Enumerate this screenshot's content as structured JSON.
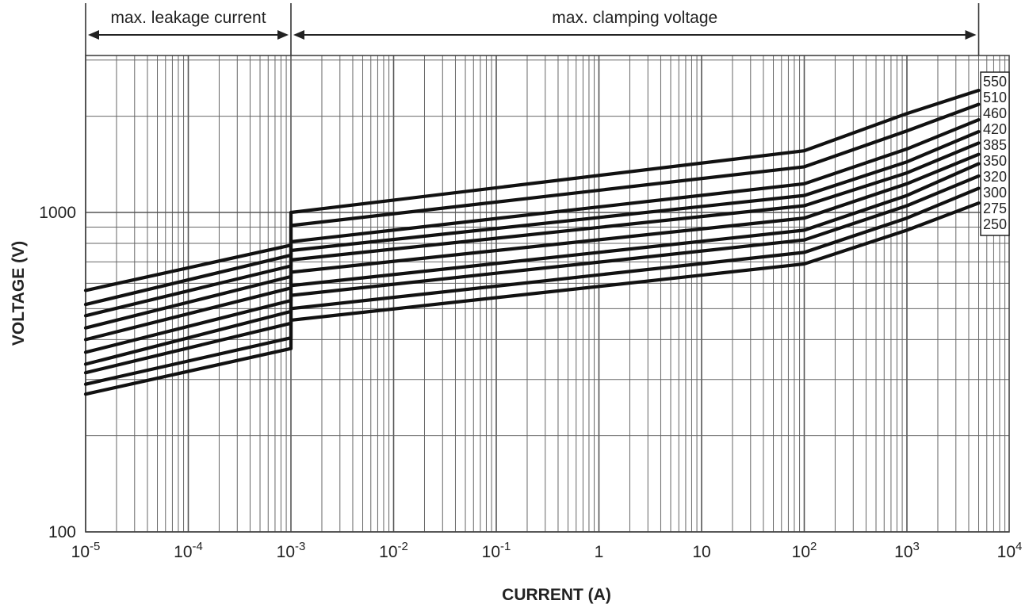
{
  "chart_data": {
    "type": "line",
    "title": "",
    "xlabel": "CURRENT (A)",
    "ylabel": "VOLTAGE (V)",
    "x_scale": "log",
    "y_scale": "log",
    "xlim": [
      1e-05,
      10000
    ],
    "ylim": [
      100,
      3000
    ],
    "grid": true,
    "x_tick_labels": [
      {
        "base": "10",
        "exp": "-5",
        "value": 1e-05
      },
      {
        "base": "10",
        "exp": "-4",
        "value": 0.0001
      },
      {
        "base": "10",
        "exp": "-3",
        "value": 0.001
      },
      {
        "base": "10",
        "exp": "-2",
        "value": 0.01
      },
      {
        "base": "10",
        "exp": "-1",
        "value": 0.1
      },
      {
        "base": "1",
        "exp": "",
        "value": 1
      },
      {
        "base": "10",
        "exp": "",
        "value": 10
      },
      {
        "base": "10",
        "exp": "2",
        "value": 100
      },
      {
        "base": "10",
        "exp": "3",
        "value": 1000
      },
      {
        "base": "10",
        "exp": "4",
        "value": 10000
      }
    ],
    "y_tick_labels": [
      {
        "text": "100",
        "value": 100
      },
      {
        "text": "1000",
        "value": 1000
      }
    ],
    "annotations": [
      {
        "text": "max. leakage current",
        "from_x": 1e-05,
        "to_x": 0.001
      },
      {
        "text": "max. clamping voltage",
        "from_x": 0.001,
        "to_x": 5000
      }
    ],
    "legend_position": "right",
    "series": [
      {
        "name": "550",
        "leak": [
          [
            1e-05,
            570
          ],
          [
            0.001,
            790
          ]
        ],
        "clamp": [
          [
            0.001,
            1000
          ],
          [
            100,
            1560
          ],
          [
            1000,
            2040
          ],
          [
            5000,
            2410
          ]
        ]
      },
      {
        "name": "510",
        "leak": [
          [
            1e-05,
            515
          ],
          [
            0.001,
            735
          ]
        ],
        "clamp": [
          [
            0.001,
            910
          ],
          [
            100,
            1390
          ],
          [
            1000,
            1800
          ],
          [
            5000,
            2180
          ]
        ]
      },
      {
        "name": "460",
        "leak": [
          [
            1e-05,
            475
          ],
          [
            0.001,
            680
          ]
        ],
        "clamp": [
          [
            0.001,
            810
          ],
          [
            100,
            1230
          ],
          [
            1000,
            1580
          ],
          [
            5000,
            1950
          ]
        ]
      },
      {
        "name": "420",
        "leak": [
          [
            1e-05,
            435
          ],
          [
            0.001,
            630
          ]
        ],
        "clamp": [
          [
            0.001,
            760
          ],
          [
            100,
            1130
          ],
          [
            1000,
            1440
          ],
          [
            5000,
            1790
          ]
        ]
      },
      {
        "name": "385",
        "leak": [
          [
            1e-05,
            400
          ],
          [
            0.001,
            580
          ]
        ],
        "clamp": [
          [
            0.001,
            710
          ],
          [
            100,
            1050
          ],
          [
            1000,
            1330
          ],
          [
            5000,
            1650
          ]
        ]
      },
      {
        "name": "350",
        "leak": [
          [
            1e-05,
            365
          ],
          [
            0.001,
            530
          ]
        ],
        "clamp": [
          [
            0.001,
            650
          ],
          [
            100,
            960
          ],
          [
            1000,
            1230
          ],
          [
            5000,
            1520
          ]
        ]
      },
      {
        "name": "320",
        "leak": [
          [
            1e-05,
            335
          ],
          [
            0.001,
            490
          ]
        ],
        "clamp": [
          [
            0.001,
            590
          ],
          [
            100,
            880
          ],
          [
            1000,
            1130
          ],
          [
            5000,
            1420
          ]
        ]
      },
      {
        "name": "300",
        "leak": [
          [
            1e-05,
            315
          ],
          [
            0.001,
            450
          ]
        ],
        "clamp": [
          [
            0.001,
            550
          ],
          [
            100,
            820
          ],
          [
            1000,
            1050
          ],
          [
            5000,
            1300
          ]
        ]
      },
      {
        "name": "275",
        "leak": [
          [
            1e-05,
            290
          ],
          [
            0.001,
            405
          ]
        ],
        "clamp": [
          [
            0.001,
            500
          ],
          [
            100,
            750
          ],
          [
            1000,
            960
          ],
          [
            5000,
            1190
          ]
        ]
      },
      {
        "name": "250",
        "leak": [
          [
            1e-05,
            270
          ],
          [
            0.001,
            375
          ]
        ],
        "clamp": [
          [
            0.001,
            460
          ],
          [
            100,
            690
          ],
          [
            1000,
            880
          ],
          [
            5000,
            1070
          ]
        ]
      }
    ]
  }
}
